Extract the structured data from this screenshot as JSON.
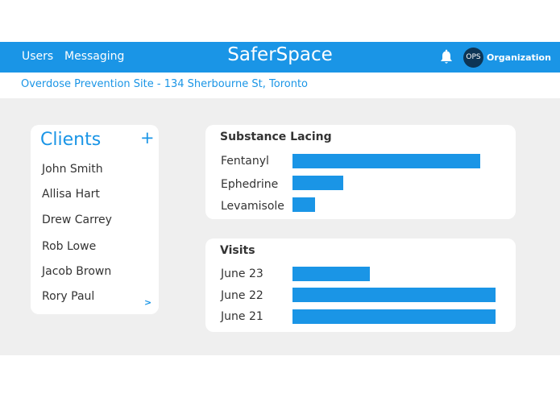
{
  "nav": {
    "users_label": "Users",
    "messaging_label": "Messaging",
    "brand": "SaferSpace",
    "bell_icon": "bell-icon",
    "avatar_text": "OPS",
    "organization_label": "Organization",
    "bar_color": "#1a95e6"
  },
  "location": "Overdose Prevention Site - 134 Sherbourne St, Toronto",
  "clients": {
    "title": "Clients",
    "add_label": "+",
    "items": [
      "John Smith",
      "Allisa Hart",
      "Drew Carrey",
      "Rob Lowe",
      "Jacob Brown",
      "Rory Paul"
    ],
    "more_label": ">"
  },
  "chart_data": [
    {
      "type": "bar",
      "orientation": "horizontal",
      "title": "Substance Lacing",
      "categories": [
        "Fentanyl",
        "Ephedrine",
        "Levamisole"
      ],
      "values": [
        100,
        27,
        12
      ],
      "max": 108,
      "color": "#1a95e6"
    },
    {
      "type": "bar",
      "orientation": "horizontal",
      "title": "Visits",
      "categories": [
        "June 23",
        "June 22",
        "June 21"
      ],
      "values": [
        38,
        100,
        100
      ],
      "max": 100,
      "color": "#1a95e6"
    }
  ]
}
